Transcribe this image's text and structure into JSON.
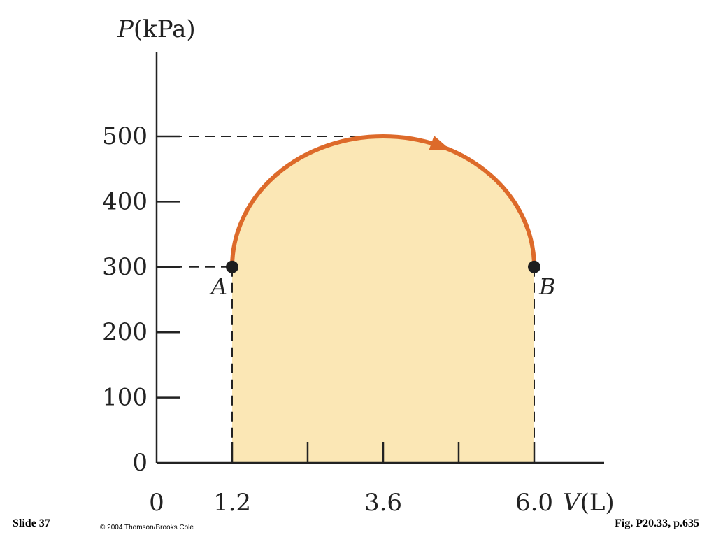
{
  "chart_data": {
    "type": "line",
    "ylabel": {
      "var": "P",
      "unit": "(kPa)"
    },
    "xlabel": {
      "var": "V",
      "unit": "(L)"
    },
    "ylim": [
      0,
      600
    ],
    "xlim": [
      0,
      6.8
    ],
    "yticks": [
      0,
      100,
      200,
      300,
      400,
      500
    ],
    "ytick_labels": [
      "0",
      "100",
      "200",
      "300",
      "400",
      "500"
    ],
    "xticks": [
      1.2,
      2.4,
      3.6,
      4.8,
      6.0
    ],
    "xtick_labels": [
      {
        "value": 0,
        "text": "0"
      },
      {
        "value": 1.2,
        "text": "1.2"
      },
      {
        "value": 3.6,
        "text": "3.6"
      },
      {
        "value": 6.0,
        "text": "6.0"
      }
    ],
    "points": [
      {
        "name": "A",
        "x": 1.2,
        "y": 300
      },
      {
        "name": "B",
        "x": 6.0,
        "y": 300
      }
    ],
    "process_path": {
      "from": "A",
      "to": "B",
      "peak": {
        "x": 3.6,
        "y": 500
      },
      "direction": "A to B"
    },
    "shaded_region": "work under curve from V = 1.2 to V = 6.0",
    "colors": {
      "curve": "#dd6a2a",
      "fill": "#fbe7b5",
      "axis": "#222222",
      "point": "#1e1e1e"
    }
  },
  "footer": {
    "slide": "Slide 37",
    "copyright": "© 2004 Thomson/Brooks Cole",
    "figure": "Fig. P20.33, p.635"
  }
}
